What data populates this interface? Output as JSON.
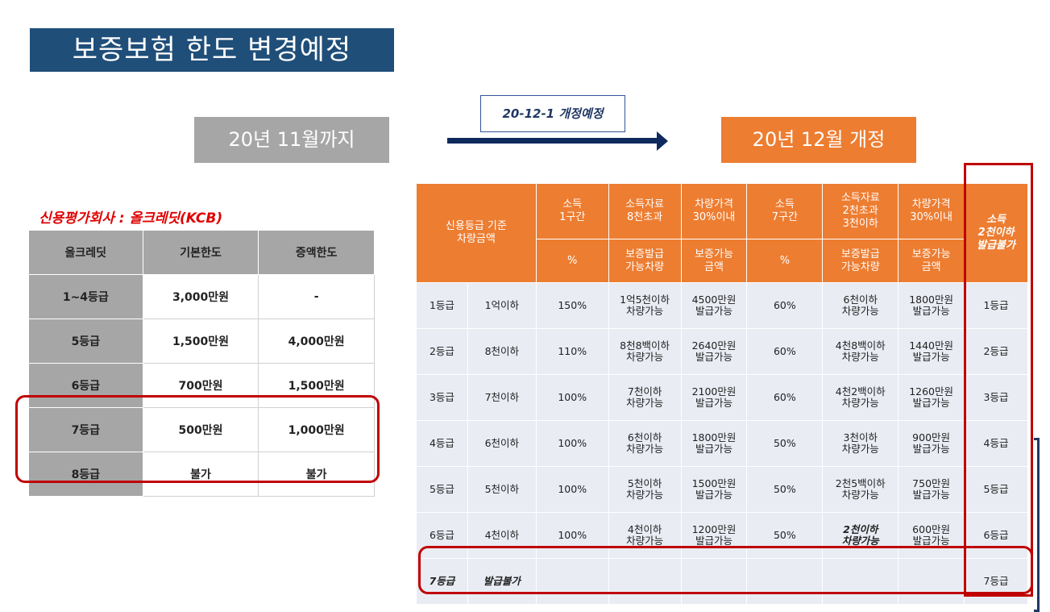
{
  "title": "보증보험 한도 변경예정",
  "before_label": "20년 11월까지",
  "after_label": "20년 12월 개정",
  "change_note": "20-12-1 개정예정",
  "credit_agency": "신용평가회사 : 올크레딧(KCB)",
  "left_table": {
    "headers": [
      "올크레딧",
      "기본한도",
      "증액한도"
    ],
    "rows": [
      [
        "1~4등급",
        "3,000만원",
        "-"
      ],
      [
        "5등급",
        "1,500만원",
        "4,000만원"
      ],
      [
        "6등급",
        "700만원",
        "1,500만원"
      ],
      [
        "7등급",
        "500만원",
        "1,000만원"
      ],
      [
        "8등급",
        "불가",
        "불가"
      ]
    ]
  },
  "right_table": {
    "header_top": [
      "신용등급 기준\n차량금액",
      "소득\n1구간",
      "소득자료\n8천초과",
      "차량가격\n30%이내",
      "소득\n7구간",
      "소득자료\n2천초과\n3천이하",
      "차량가격\n30%이내",
      "소득\n2천이하\n발급불가"
    ],
    "header_bottom": [
      "%",
      "보증발급\n가능차량",
      "보증가능\n금액",
      "%",
      "보증발급\n가능차량",
      "보증가능\n금액"
    ],
    "rows": [
      [
        "1등급",
        "1억이하",
        "150%",
        "1억5천이하\n차량가능",
        "4500만원\n발급가능",
        "60%",
        "6천이하\n차량가능",
        "1800만원\n발급가능",
        "1등급"
      ],
      [
        "2등급",
        "8천이하",
        "110%",
        "8천8백이하\n차량가능",
        "2640만원\n발급가능",
        "60%",
        "4천8백이하\n차량가능",
        "1440만원\n발급가능",
        "2등급"
      ],
      [
        "3등급",
        "7천이하",
        "100%",
        "7천이하\n차량가능",
        "2100만원\n발급가능",
        "60%",
        "4천2백이하\n차량가능",
        "1260만원\n발급가능",
        "3등급"
      ],
      [
        "4등급",
        "6천이하",
        "100%",
        "6천이하\n차량가능",
        "1800만원\n발급가능",
        "50%",
        "3천이하\n차량가능",
        "900만원\n발급가능",
        "4등급"
      ],
      [
        "5등급",
        "5천이하",
        "100%",
        "5천이하\n차량가능",
        "1500만원\n발급가능",
        "50%",
        "2천5백이하\n차량가능",
        "750만원\n발급가능",
        "5등급"
      ],
      [
        "6등급",
        "4천이하",
        "100%",
        "4천이하\n차량가능",
        "1200만원\n발급가능",
        "50%",
        "2천이하\n차량가능",
        "600만원\n발급가능",
        "6등급"
      ]
    ],
    "last_row": [
      "7등급",
      "발급불가",
      "7등급"
    ]
  },
  "colors": {
    "title_bg": "#1f4e79",
    "orange": "#ed7d31",
    "gray": "#a6a6a6",
    "highlight_red": "#c00000"
  }
}
